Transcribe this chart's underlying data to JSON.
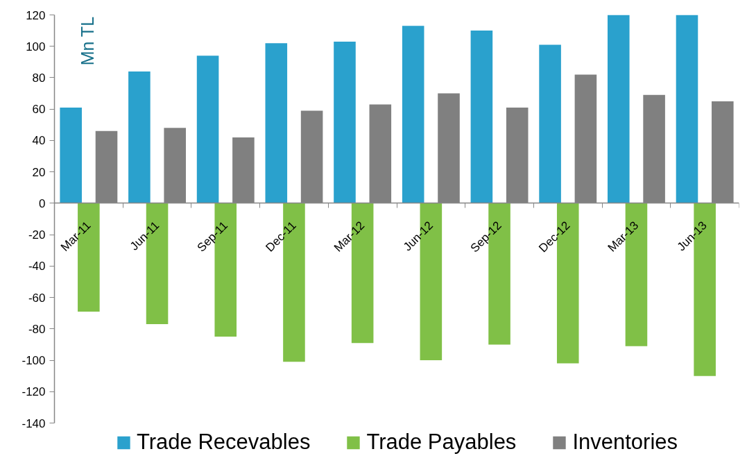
{
  "chart_data": {
    "type": "bar",
    "ylabel": "Mn TL",
    "categories": [
      "Mar-11",
      "Jun-11",
      "Sep-11",
      "Dec-11",
      "Mar-12",
      "Jun-12",
      "Sep-12",
      "Dec-12",
      "Mar-13",
      "Jun-13"
    ],
    "series": [
      {
        "name": "Trade Recevables",
        "color": "#2aa1cd",
        "values": [
          61,
          84,
          94,
          102,
          103,
          113,
          110,
          101,
          120,
          120
        ]
      },
      {
        "name": "Trade Payables",
        "color": "#80c047",
        "values": [
          -69,
          -77,
          -85,
          -101,
          -89,
          -100,
          -90,
          -102,
          -91,
          -110
        ]
      },
      {
        "name": "Inventories",
        "color": "#808080",
        "values": [
          46,
          48,
          42,
          59,
          63,
          70,
          61,
          82,
          69,
          65
        ]
      }
    ],
    "ylim": [
      -140,
      120
    ],
    "yticks": [
      -140,
      -120,
      -100,
      -80,
      -60,
      -40,
      -20,
      0,
      20,
      40,
      60,
      80,
      100,
      120
    ],
    "grid": false,
    "legend": "bottom"
  }
}
